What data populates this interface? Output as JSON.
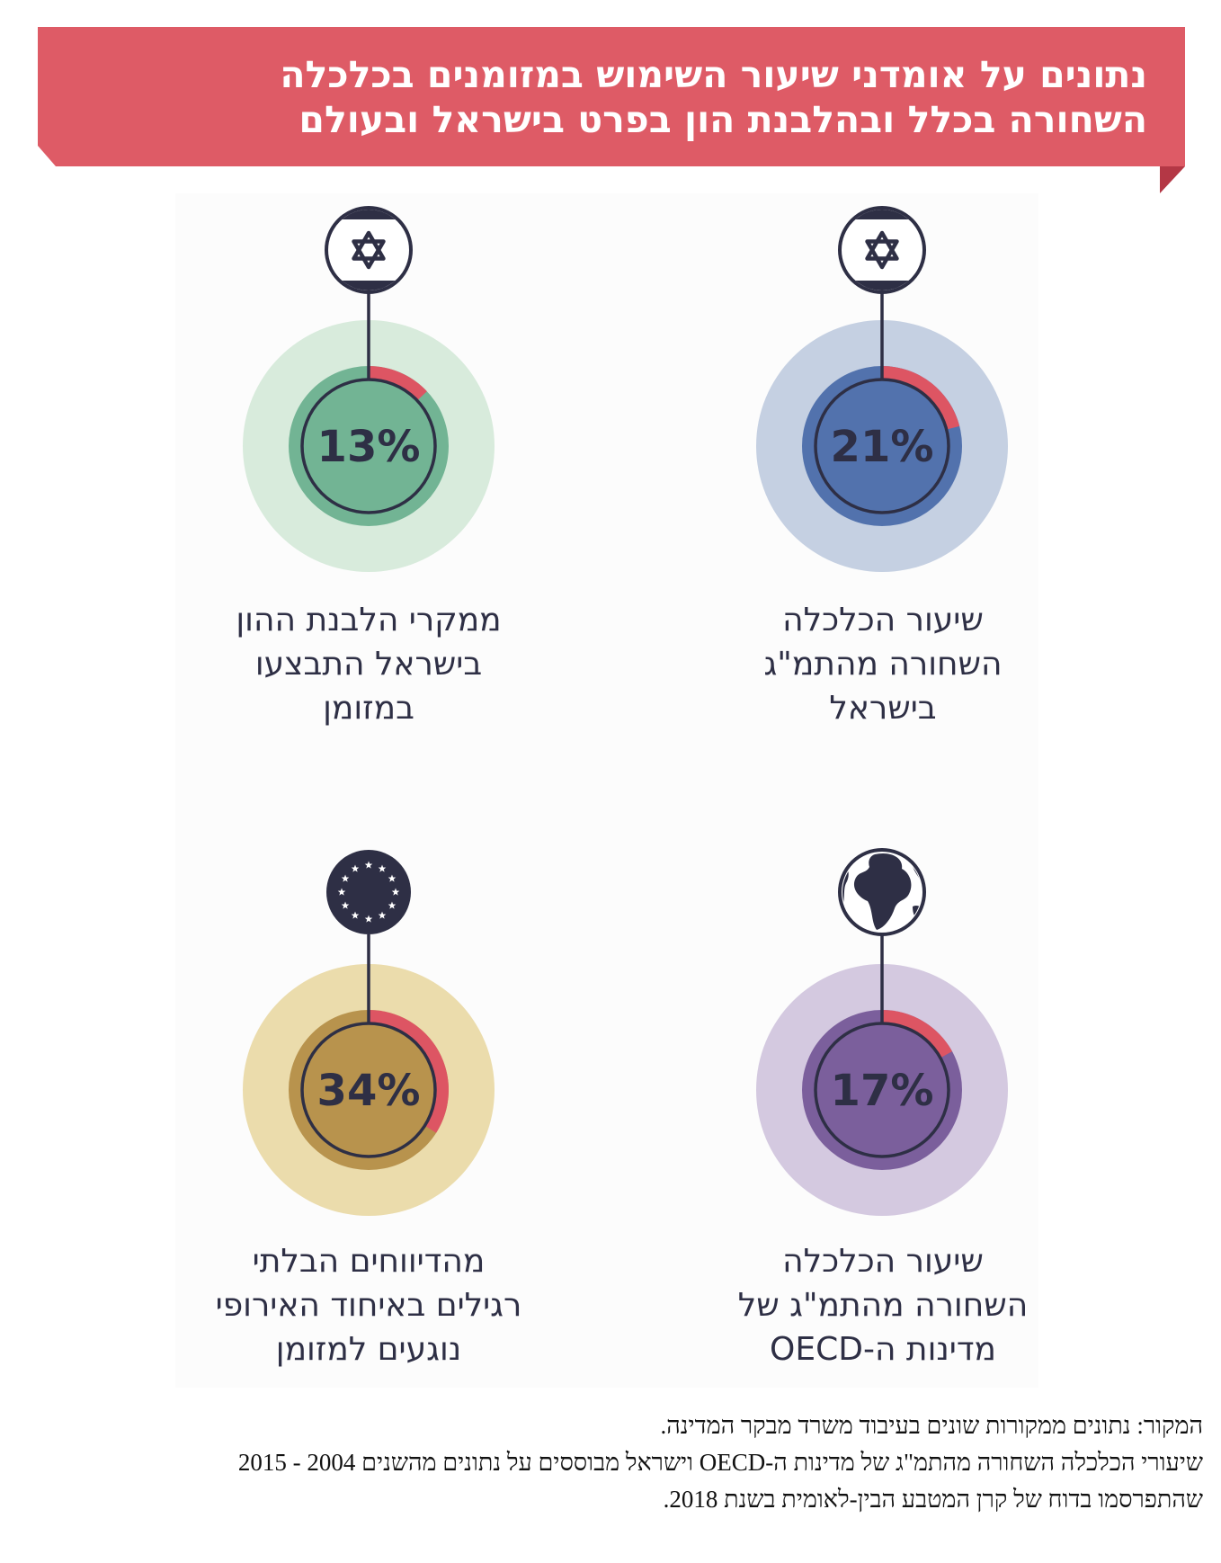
{
  "header": {
    "title_line1": "נתונים על אומדני שיעור השימוש במזומנים בכלכלה",
    "title_line2": "השחורה בכלל ובהלבנת הון בפרט בישראל ובעולם"
  },
  "chart_data": [
    {
      "type": "pie",
      "value": 21,
      "value_label": "21%",
      "icon": "israel-flag-icon",
      "caption_lines": [
        "שיעור הכלכלה",
        "השחורה מהתמ\"ג",
        "בישראל"
      ],
      "colors": {
        "outer": "#c5d0e2",
        "inner": "#5272ad",
        "highlight": "#dd5563",
        "ring": "#2e2f45"
      }
    },
    {
      "type": "pie",
      "value": 13,
      "value_label": "13%",
      "icon": "israel-flag-icon",
      "caption_lines": [
        "ממקרי הלבנת ההון",
        "בישראל התבצעו",
        "במזומן"
      ],
      "colors": {
        "outer": "#d8ebdc",
        "inner": "#72b494",
        "highlight": "#dd5563",
        "ring": "#2e2f45"
      }
    },
    {
      "type": "pie",
      "value": 17,
      "value_label": "17%",
      "icon": "globe-icon",
      "caption_lines": [
        "שיעור הכלכלה",
        "השחורה מהתמ\"ג של",
        "מדינות ה-OECD"
      ],
      "colors": {
        "outer": "#d4c9e0",
        "inner": "#7b5f9c",
        "highlight": "#dd5563",
        "ring": "#2e2f45"
      }
    },
    {
      "type": "pie",
      "value": 34,
      "value_label": "34%",
      "icon": "eu-flag-icon",
      "caption_lines": [
        "מהדיווחים הבלתי",
        "רגילים באיחוד האירופי",
        "נוגעים למזומן"
      ],
      "colors": {
        "outer": "#ebdcac",
        "inner": "#b8934d",
        "highlight": "#dd5563",
        "ring": "#2e2f45"
      }
    }
  ],
  "footer": {
    "line1": "המקור: נתונים ממקורות שונים בעיבוד משרד מבקר המדינה.",
    "line2": "שיעורי הכלכלה השחורה מהתמ\"ג של מדינות ה-OECD וישראל מבוססים על נתונים מהשנים 2004 - 2015",
    "line3": "שהתפרסמו בדוח של קרן המטבע הבין-לאומית בשנת 2018."
  },
  "colors": {
    "banner": "#de5b66",
    "banner_fold": "#b43745",
    "ink": "#2e2f45"
  }
}
